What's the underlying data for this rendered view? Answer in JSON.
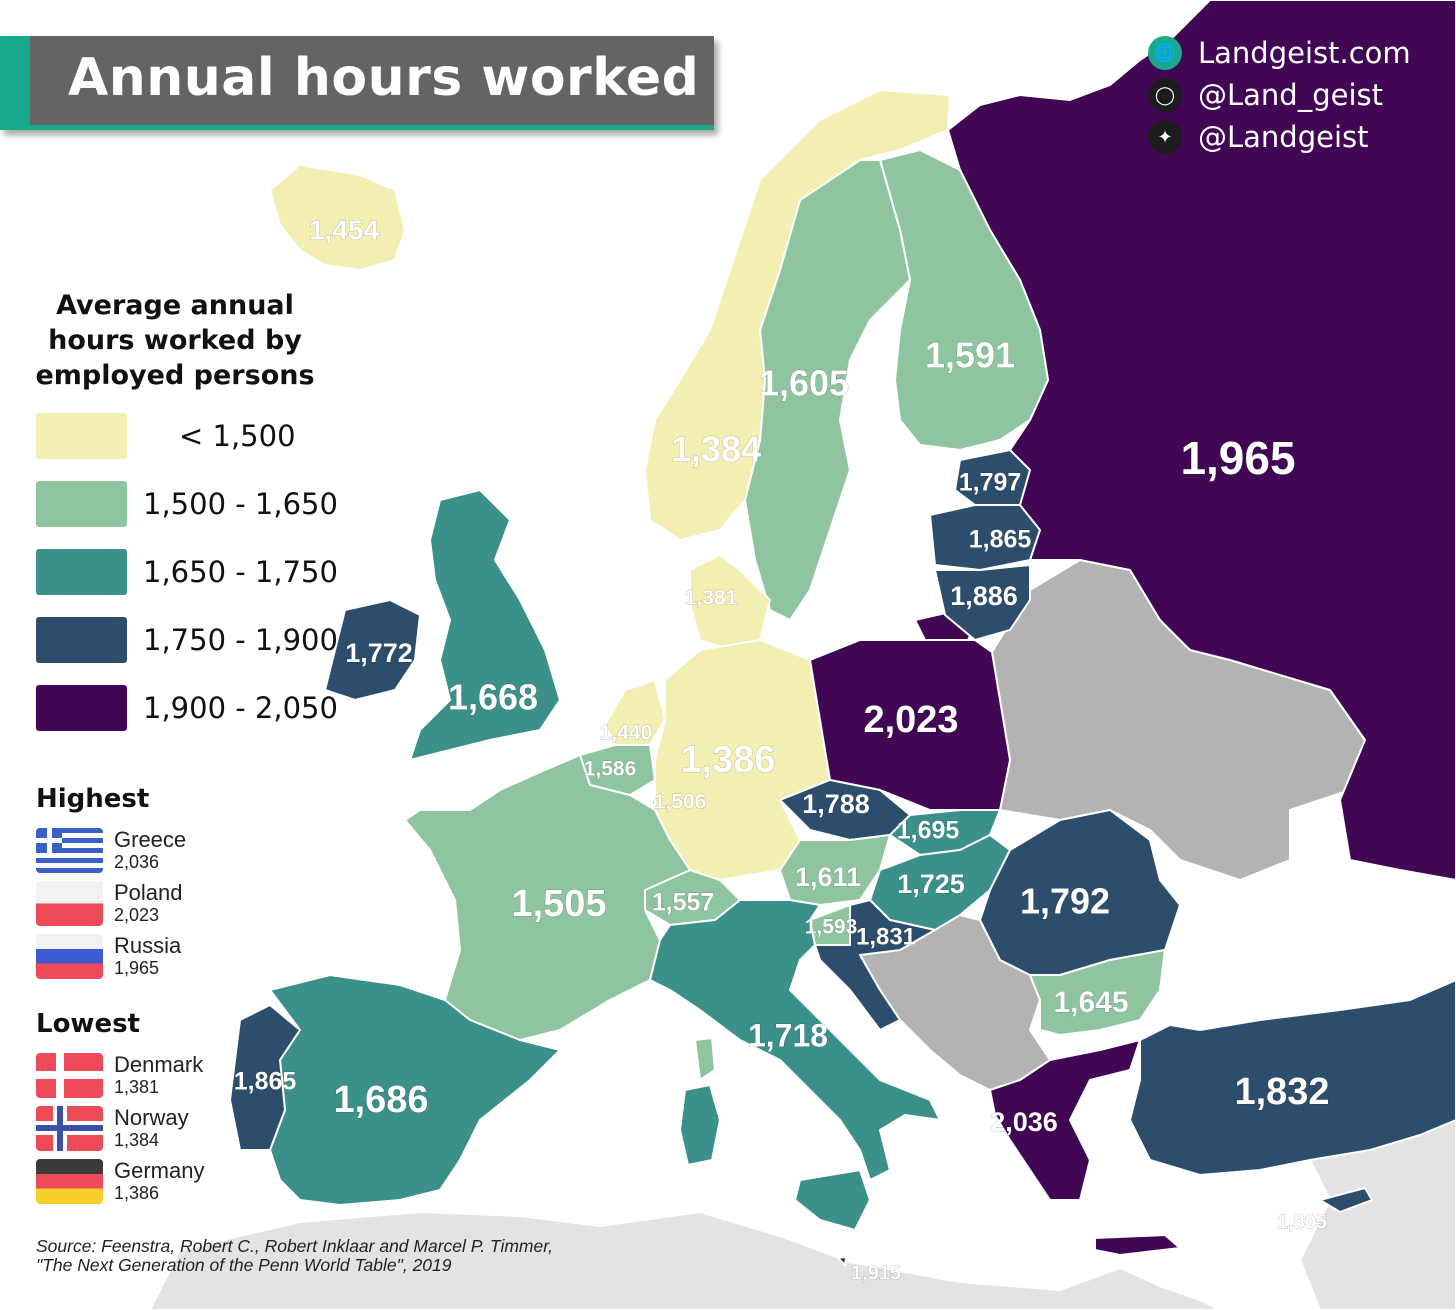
{
  "title": "Annual hours worked",
  "social": [
    {
      "icon": "globe-icon",
      "text": "Landgeist.com"
    },
    {
      "icon": "instagram-icon",
      "text": "@Land_geist"
    },
    {
      "icon": "twitter-icon",
      "text": "@Landgeist"
    }
  ],
  "legend": {
    "title_lines": [
      "Average annual",
      "hours worked by",
      "employed persons"
    ],
    "items": [
      {
        "label": "< 1,500",
        "color": "#f3eeb2"
      },
      {
        "label": "1,500 - 1,650",
        "color": "#8fc4a0"
      },
      {
        "label": "1,650 - 1,750",
        "color": "#3b908a"
      },
      {
        "label": "1,750 - 1,900",
        "color": "#2d4d6c"
      },
      {
        "label": "1,900 - 2,050",
        "color": "#410654"
      }
    ]
  },
  "highest": {
    "heading": "Highest",
    "items": [
      {
        "country": "Greece",
        "value": "2,036"
      },
      {
        "country": "Poland",
        "value": "2,023"
      },
      {
        "country": "Russia",
        "value": "1,965"
      }
    ]
  },
  "lowest": {
    "heading": "Lowest",
    "items": [
      {
        "country": "Denmark",
        "value": "1,381"
      },
      {
        "country": "Norway",
        "value": "1,384"
      },
      {
        "country": "Germany",
        "value": "1,386"
      }
    ]
  },
  "source": {
    "line1": "Source: Feenstra, Robert C., Robert Inklaar and Marcel P. Timmer,",
    "line2": "\"The Next Generation of the Penn World Table\", 2019"
  },
  "colors": {
    "no_data": "#b3b3b3",
    "outside": "#e3e3e3",
    "accent": "#18a98e",
    "title_bg": "#636466"
  },
  "map_labels": [
    {
      "country": "Iceland",
      "value": "1,454"
    },
    {
      "country": "Norway",
      "value": "1,384"
    },
    {
      "country": "Sweden",
      "value": "1,605"
    },
    {
      "country": "Finland",
      "value": "1,591"
    },
    {
      "country": "Russia",
      "value": "1,965"
    },
    {
      "country": "Estonia",
      "value": "1,797"
    },
    {
      "country": "Latvia",
      "value": "1,865"
    },
    {
      "country": "Lithuania",
      "value": "1,886"
    },
    {
      "country": "Denmark",
      "value": "1,381"
    },
    {
      "country": "Ireland",
      "value": "1,772"
    },
    {
      "country": "United Kingdom",
      "value": "1,668"
    },
    {
      "country": "Netherlands",
      "value": "1,440"
    },
    {
      "country": "Belgium",
      "value": "1,586"
    },
    {
      "country": "Luxembourg",
      "value": "1,506"
    },
    {
      "country": "Germany",
      "value": "1,386"
    },
    {
      "country": "Poland",
      "value": "2,023"
    },
    {
      "country": "Czechia",
      "value": "1,788"
    },
    {
      "country": "Slovakia",
      "value": "1,695"
    },
    {
      "country": "Austria",
      "value": "1,611"
    },
    {
      "country": "Hungary",
      "value": "1,725"
    },
    {
      "country": "Romania",
      "value": "1,792"
    },
    {
      "country": "France",
      "value": "1,505"
    },
    {
      "country": "Switzerland",
      "value": "1,557"
    },
    {
      "country": "Slovenia",
      "value": "1,593"
    },
    {
      "country": "Croatia",
      "value": "1,831"
    },
    {
      "country": "Bulgaria",
      "value": "1,645"
    },
    {
      "country": "Italy",
      "value": "1,718"
    },
    {
      "country": "Portugal",
      "value": "1,865"
    },
    {
      "country": "Spain",
      "value": "1,686"
    },
    {
      "country": "Greece",
      "value": "2,036"
    },
    {
      "country": "Turkey",
      "value": "1,832"
    },
    {
      "country": "Cyprus",
      "value": "1,805"
    },
    {
      "country": "Malta",
      "value": "1,915"
    }
  ]
}
